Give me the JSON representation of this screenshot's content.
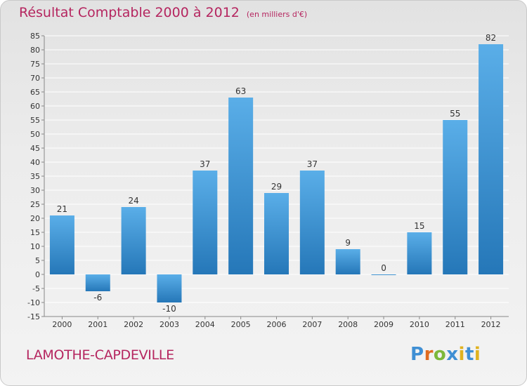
{
  "header": {
    "title": "Résultat Comptable 2000 à 2012",
    "subtitle": "(en milliers d'€)"
  },
  "footer": {
    "commune": "LAMOTHE-CAPDEVILLE",
    "brand": "Proxiti"
  },
  "colors": {
    "title": "#b5255f",
    "bar_top": "#5aaee8",
    "bar_bottom": "#2577b8",
    "grid": "#ffffff",
    "text": "#333333",
    "brand_letters": [
      "#3f8fd4",
      "#e06b1f",
      "#7db83a",
      "#3f8fd4",
      "#e0b21f",
      "#3f8fd4",
      "#e0b21f"
    ]
  },
  "chart_data": {
    "type": "bar",
    "categories": [
      "2000",
      "2001",
      "2002",
      "2003",
      "2004",
      "2005",
      "2006",
      "2007",
      "2008",
      "2009",
      "2010",
      "2011",
      "2012"
    ],
    "values": [
      21,
      -6,
      24,
      -10,
      37,
      63,
      29,
      37,
      9,
      0,
      15,
      55,
      82
    ],
    "title": "Résultat Comptable 2000 à 2012",
    "xlabel": "",
    "ylabel": "",
    "ylim": [
      -15,
      85
    ],
    "yticks": [
      -15,
      -10,
      -5,
      0,
      5,
      10,
      15,
      20,
      25,
      30,
      35,
      40,
      45,
      50,
      55,
      60,
      65,
      70,
      75,
      80,
      85
    ],
    "grid": true,
    "legend": "none"
  }
}
